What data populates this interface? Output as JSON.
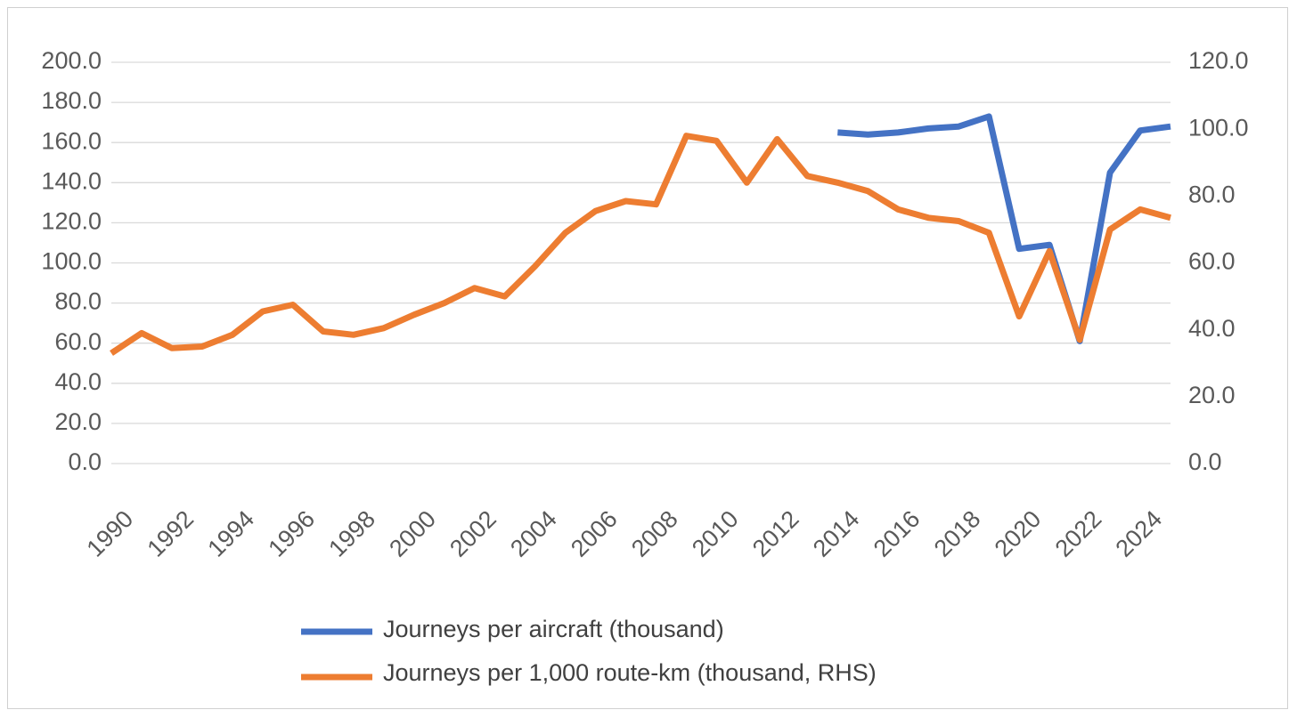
{
  "chart_data": {
    "type": "line",
    "x": [
      1990,
      1991,
      1992,
      1993,
      1994,
      1995,
      1996,
      1997,
      1998,
      1999,
      2000,
      2001,
      2002,
      2003,
      2004,
      2005,
      2006,
      2007,
      2008,
      2009,
      2010,
      2011,
      2012,
      2013,
      2014,
      2015,
      2016,
      2017,
      2018,
      2019,
      2020,
      2021,
      2022,
      2023,
      2024,
      2025
    ],
    "x_tick_labels": [
      "1990",
      "1992",
      "1994",
      "1996",
      "1998",
      "2000",
      "2002",
      "2004",
      "2006",
      "2008",
      "2010",
      "2012",
      "2014",
      "2016",
      "2018",
      "2020",
      "2022",
      "2024"
    ],
    "y_left": {
      "ylim": [
        0,
        200
      ],
      "ticks": [
        "0.0",
        "20.0",
        "40.0",
        "60.0",
        "80.0",
        "100.0",
        "120.0",
        "140.0",
        "160.0",
        "180.0",
        "200.0"
      ]
    },
    "y_right": {
      "ylim": [
        0,
        120
      ],
      "ticks": [
        "0.0",
        "20.0",
        "40.0",
        "60.0",
        "80.0",
        "100.0",
        "120.0"
      ]
    },
    "grid": true,
    "legend_position": "bottom",
    "series": [
      {
        "name": "Journeys per aircraft (thousand)",
        "axis": "left",
        "color": "#4472C4",
        "values": [
          null,
          null,
          null,
          null,
          null,
          null,
          null,
          null,
          null,
          null,
          null,
          null,
          null,
          null,
          null,
          null,
          null,
          null,
          null,
          null,
          null,
          null,
          null,
          null,
          165,
          164,
          165,
          167,
          168,
          173,
          107,
          109,
          61,
          145,
          166,
          168
        ]
      },
      {
        "name": "Journeys per 1,000 route-km (thousand, RHS)",
        "axis": "right",
        "color": "#ED7D31",
        "values": [
          33.0,
          39.0,
          34.5,
          35.0,
          38.5,
          45.5,
          47.5,
          39.5,
          38.5,
          40.5,
          44.5,
          48.0,
          52.5,
          50.0,
          59.0,
          69.0,
          75.5,
          78.5,
          77.5,
          98.0,
          96.5,
          84.0,
          97.0,
          86.0,
          84.0,
          81.5,
          76.0,
          73.5,
          72.5,
          69.0,
          44.0,
          63.5,
          37.0,
          70.0,
          76.0,
          73.5
        ]
      }
    ]
  }
}
